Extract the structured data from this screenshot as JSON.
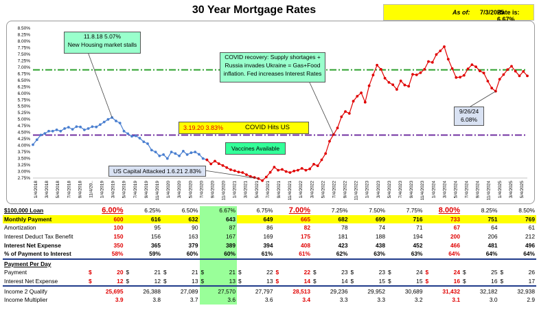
{
  "title": "30 Year Mortgage Rates",
  "asof": {
    "label": "As of:",
    "date": "7/3/2025",
    "rate_label": "Rate is: 6.67%"
  },
  "chart_data": {
    "type": "line",
    "title": "30 Year Mortgage Rates",
    "ylim": [
      2.75,
      8.5
    ],
    "y_ticks": [
      "8.50%",
      "8.25%",
      "8.00%",
      "7.75%",
      "7.50%",
      "7.25%",
      "7.00%",
      "6.75%",
      "6.50%",
      "6.25%",
      "6.00%",
      "5.75%",
      "5.50%",
      "5.25%",
      "5.00%",
      "4.75%",
      "4.50%",
      "4.25%",
      "4.00%",
      "3.75%",
      "3.50%",
      "3.25%",
      "3.00%",
      "2.75%"
    ],
    "x_ticks": [
      "1/4/2018",
      "3/4/2018",
      "5/4/2018",
      "7/4/2018",
      "9/4/2018",
      "11/4/20..",
      "1/4/2019",
      "3/4/2019",
      "5/4/2019",
      "7/4/2019",
      "9/4/2019",
      "11/4/2019",
      "1/4/2020",
      "3/4/2020",
      "5/4/2020",
      "7/4/2020",
      "9/4/2020",
      "11/4/2020",
      "1/4/2021",
      "3/4/2021",
      "5/4/2021",
      "7/4/2021",
      "9/4/2021",
      "11/4/2021",
      "1/4/2022",
      "3/4/2022",
      "5/4/2022",
      "7/4/2022",
      "9/4/2022",
      "11/4/2022",
      "1/4/2023",
      "3/4/2023",
      "5/4/2023",
      "7/4/2023",
      "9/4/2023",
      "11/4/2023",
      "1/4/2024",
      "3/4/2024",
      "5/4/2024",
      "7/4/2024",
      "9/4/2024",
      "11/4/2024",
      "1/4/2025",
      "3/4/2025",
      "5/4/2025"
    ],
    "series": [
      {
        "color": "#4a7fd0",
        "points": [
          [
            0,
            4.03
          ],
          [
            1,
            4.22
          ],
          [
            2,
            4.4
          ],
          [
            3,
            4.46
          ],
          [
            4,
            4.55
          ],
          [
            5,
            4.55
          ],
          [
            6,
            4.6
          ],
          [
            7,
            4.55
          ],
          [
            8,
            4.65
          ],
          [
            9,
            4.7
          ],
          [
            10,
            4.62
          ],
          [
            11,
            4.72
          ],
          [
            12,
            4.71
          ],
          [
            13,
            4.6
          ],
          [
            14,
            4.65
          ],
          [
            15,
            4.72
          ],
          [
            16,
            4.71
          ],
          [
            17,
            4.8
          ],
          [
            18,
            4.9
          ],
          [
            19,
            5.0
          ],
          [
            20,
            5.07
          ],
          [
            21,
            4.94
          ],
          [
            22,
            4.86
          ],
          [
            23,
            4.55
          ],
          [
            24,
            4.45
          ],
          [
            25,
            4.35
          ],
          [
            26,
            4.37
          ],
          [
            27,
            4.28
          ],
          [
            28,
            4.14
          ],
          [
            29,
            4.07
          ],
          [
            30,
            3.82
          ],
          [
            31,
            3.75
          ],
          [
            32,
            3.6
          ],
          [
            33,
            3.65
          ],
          [
            34,
            3.5
          ],
          [
            35,
            3.75
          ],
          [
            36,
            3.69
          ],
          [
            37,
            3.6
          ],
          [
            38,
            3.78
          ],
          [
            39,
            3.65
          ],
          [
            40,
            3.72
          ],
          [
            41,
            3.75
          ],
          [
            42,
            3.66
          ],
          [
            43,
            3.5
          ],
          [
            44,
            3.45
          ]
        ]
      },
      {
        "color": "#e00000",
        "points": [
          [
            44,
            3.45
          ],
          [
            45,
            3.29
          ],
          [
            46,
            3.4
          ],
          [
            47,
            3.3
          ],
          [
            48,
            3.23
          ],
          [
            49,
            3.15
          ],
          [
            50,
            3.07
          ],
          [
            51,
            3.03
          ],
          [
            52,
            2.98
          ],
          [
            53,
            2.96
          ],
          [
            54,
            2.88
          ],
          [
            55,
            2.81
          ],
          [
            56,
            2.77
          ],
          [
            57,
            2.73
          ],
          [
            58,
            2.65
          ],
          [
            59,
            2.79
          ],
          [
            60,
            2.97
          ],
          [
            61,
            3.17
          ],
          [
            62,
            3.05
          ],
          [
            63,
            3.08
          ],
          [
            64,
            3.0
          ],
          [
            65,
            2.96
          ],
          [
            66,
            3.02
          ],
          [
            67,
            3.05
          ],
          [
            68,
            3.12
          ],
          [
            69,
            3.05
          ],
          [
            70,
            3.1
          ],
          [
            71,
            3.28
          ],
          [
            72,
            3.22
          ],
          [
            73,
            3.45
          ],
          [
            74,
            3.69
          ],
          [
            75,
            4.16
          ],
          [
            76,
            4.42
          ],
          [
            77,
            4.67
          ],
          [
            78,
            5.1
          ],
          [
            79,
            5.3
          ],
          [
            80,
            5.23
          ],
          [
            81,
            5.7
          ],
          [
            82,
            5.89
          ],
          [
            83,
            6.02
          ],
          [
            84,
            5.66
          ],
          [
            85,
            6.29
          ],
          [
            86,
            6.7
          ],
          [
            87,
            7.08
          ],
          [
            88,
            6.92
          ],
          [
            89,
            6.58
          ],
          [
            90,
            6.42
          ],
          [
            91,
            6.33
          ],
          [
            92,
            6.15
          ],
          [
            93,
            6.48
          ],
          [
            94,
            6.32
          ],
          [
            95,
            6.27
          ],
          [
            96,
            6.73
          ],
          [
            97,
            6.71
          ],
          [
            98,
            6.79
          ],
          [
            99,
            6.92
          ],
          [
            100,
            7.22
          ],
          [
            101,
            7.19
          ],
          [
            102,
            7.49
          ],
          [
            103,
            7.63
          ],
          [
            104,
            7.79
          ],
          [
            105,
            7.31
          ],
          [
            106,
            6.95
          ],
          [
            107,
            6.61
          ],
          [
            108,
            6.62
          ],
          [
            109,
            6.69
          ],
          [
            110,
            6.94
          ],
          [
            111,
            7.1
          ],
          [
            112,
            7.02
          ],
          [
            113,
            6.86
          ],
          [
            114,
            6.78
          ],
          [
            115,
            6.47
          ],
          [
            116,
            6.2
          ],
          [
            117,
            6.08
          ],
          [
            118,
            6.54
          ],
          [
            119,
            6.72
          ],
          [
            120,
            6.91
          ],
          [
            121,
            7.04
          ],
          [
            122,
            6.85
          ],
          [
            123,
            6.67
          ],
          [
            124,
            6.84
          ],
          [
            125,
            6.67
          ]
        ]
      }
    ],
    "reference_lines": [
      {
        "value": 6.9,
        "color": "#2ca02c",
        "style": "dash-dot"
      },
      {
        "value": 4.4,
        "color": "#7030a0",
        "style": "dash-dot"
      }
    ],
    "annotations": [
      {
        "lines": [
          "11.8.18 5.07%",
          "New Housing market stalls"
        ],
        "background": "#99ffcc"
      },
      {
        "lines": [
          "COVID recovery: Supply shortages +",
          "Russia invades Ukraine = Gas+Food",
          "inflation.  Fed increases Interest Rates"
        ],
        "background": "#99ffcc"
      },
      {
        "lines": [
          "3.19.20  3.83%",
          "COVID Hits US"
        ],
        "background": "#ffff00"
      },
      {
        "lines": [
          "Vaccines Available"
        ],
        "background": "#33ff99"
      },
      {
        "lines": [
          "US Capital Attacked 1.6.21 2.83%"
        ],
        "background": "#d9e2f3"
      },
      {
        "lines": [
          "9/26/24",
          "6.08%"
        ],
        "background": "#d9e2f3"
      }
    ]
  },
  "table": {
    "header_label": "$100,000 Loan",
    "rates": [
      {
        "v": "6.00%",
        "red": true
      },
      {
        "v": "6.25%"
      },
      {
        "v": "6.50%"
      },
      {
        "v": "6.67%",
        "hl": true
      },
      {
        "v": "6.75%"
      },
      {
        "v": "7.00%",
        "red": true
      },
      {
        "v": "7.25%"
      },
      {
        "v": "7.50%"
      },
      {
        "v": "7.75%"
      },
      {
        "v": "8.00%",
        "red": true
      },
      {
        "v": "8.25%"
      },
      {
        "v": "8.50%"
      }
    ],
    "rows1": [
      {
        "label": "Monthly Payment",
        "yellow": true,
        "values": [
          "600",
          "616",
          "632",
          "643",
          "649",
          "665",
          "682",
          "699",
          "716",
          "733",
          "751",
          "769"
        ]
      },
      {
        "label": "Amortization",
        "values": [
          "100",
          "95",
          "90",
          "87",
          "86",
          "82",
          "78",
          "74",
          "71",
          "67",
          "64",
          "61"
        ]
      },
      {
        "label": "Interest Deduct Tax Benefit",
        "values": [
          "150",
          "156",
          "163",
          "167",
          "169",
          "175",
          "181",
          "188",
          "194",
          "200",
          "206",
          "212"
        ]
      },
      {
        "label": "Interest Net Expense",
        "bold": true,
        "values": [
          "350",
          "365",
          "379",
          "389",
          "394",
          "408",
          "423",
          "438",
          "452",
          "466",
          "481",
          "496"
        ]
      },
      {
        "label": "% of Payment to Interest",
        "bold": true,
        "values": [
          "58%",
          "59%",
          "60%",
          "60%",
          "61%",
          "61%",
          "62%",
          "63%",
          "63%",
          "64%",
          "64%",
          "64%"
        ]
      }
    ],
    "per_day_title": "Payment Per Day",
    "rows2": [
      {
        "label": "Payment",
        "dollar": "$",
        "values": [
          "20",
          "21",
          "21",
          "21",
          "22",
          "22",
          "23",
          "23",
          "24",
          "24",
          "25",
          "26"
        ]
      },
      {
        "label": "Interest Net Expense",
        "dollar": "$",
        "values": [
          "12",
          "12",
          "13",
          "13",
          "13",
          "14",
          "14",
          "15",
          "15",
          "16",
          "16",
          "17"
        ]
      }
    ],
    "rows3": [
      {
        "label": "Income 2 Qualify",
        "values": [
          "25,695",
          "26,388",
          "27,089",
          "27,570",
          "27,797",
          "28,513",
          "29,236",
          "29,952",
          "30,689",
          "31,432",
          "32,182",
          "32,938"
        ]
      },
      {
        "label": "Income Multiplier",
        "values": [
          "3.9",
          "3.8",
          "3.7",
          "3.6",
          "3.6",
          "3.4",
          "3.3",
          "3.3",
          "3.2",
          "3.1",
          "3.0",
          "2.9"
        ]
      }
    ]
  }
}
